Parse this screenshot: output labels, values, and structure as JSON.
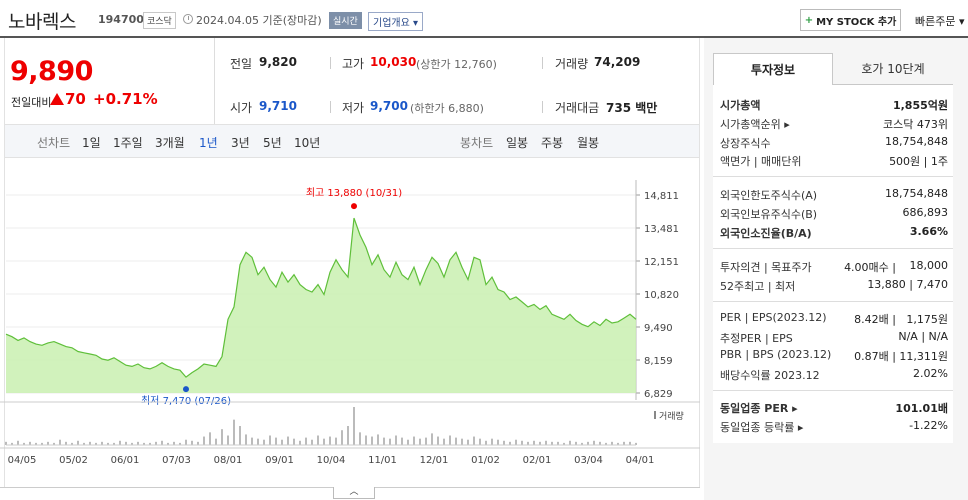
{
  "header": {
    "name": "노바렉스",
    "code": "194700",
    "market": "코스닥",
    "asof": "2024.04.05  기준(장마감)",
    "realtime": "실시간",
    "company_info": "기업개요 ▾",
    "mystock": "MY STOCK 추가",
    "quick_order": "빠른주문 ▾"
  },
  "price": {
    "current": "9,890",
    "change_label": "전일대비",
    "change_amount": "70",
    "change_pct": "+0.71%"
  },
  "stats": {
    "prev_label": "전일",
    "prev": "9,820",
    "high_label": "고가",
    "high": "10,030",
    "upper_limit": "(상한가 12,760)",
    "volume_label": "거래량",
    "volume": "74,209",
    "open_label": "시가",
    "open": "9,710",
    "low_label": "저가",
    "low": "9,700",
    "lower_limit": "(하한가 6,880)",
    "amount_label": "거래대금",
    "amount": "735 백만"
  },
  "period": {
    "line_label": "선차트",
    "line_items": [
      "1일",
      "1주일",
      "3개월",
      "1년",
      "3년",
      "5년",
      "10년"
    ],
    "active": "1년",
    "candle_label": "봉차트",
    "candle_items": [
      "일봉",
      "주봉",
      "월봉"
    ]
  },
  "chart_data": {
    "type": "area",
    "y_ticks": [
      "14,811",
      "13,481",
      "12,151",
      "10,820",
      "9,490",
      "8,159",
      "6,829"
    ],
    "ylim": [
      6829,
      14811
    ],
    "x_ticks": [
      "04/05",
      "05/02",
      "06/01",
      "07/03",
      "08/01",
      "09/01",
      "10/04",
      "11/01",
      "12/01",
      "01/02",
      "02/01",
      "03/04",
      "04/01"
    ],
    "high_annotation": "최고 13,880 (10/31)",
    "low_annotation": "최저 7,470 (07/26)",
    "volume_label": "거래량",
    "price": [
      9200,
      9100,
      8950,
      9050,
      8900,
      8800,
      8750,
      8850,
      8900,
      8800,
      8700,
      8650,
      8500,
      8450,
      8400,
      8350,
      8200,
      8150,
      8250,
      8100,
      7950,
      7900,
      8000,
      7850,
      7800,
      7900,
      8050,
      7900,
      7800,
      7750,
      7470,
      7650,
      7800,
      8000,
      7950,
      7900,
      8300,
      9800,
      10300,
      12000,
      12500,
      12300,
      11600,
      11900,
      11400,
      11100,
      11700,
      11300,
      11600,
      11200,
      11000,
      10900,
      11200,
      10800,
      11700,
      12200,
      11800,
      11500,
      13880,
      13200,
      12700,
      12000,
      12400,
      11800,
      11500,
      12100,
      11600,
      11400,
      11900,
      11200,
      11800,
      12300,
      12050,
      11500,
      12200,
      12500,
      11900,
      11400,
      12300,
      12200,
      11200,
      11500,
      11000,
      10900,
      10600,
      10700,
      10500,
      10300,
      10400,
      10200,
      10350,
      10000,
      9900,
      9800,
      10000,
      9750,
      9600,
      9500,
      9700,
      9550,
      9800,
      9650,
      9700,
      9850,
      10000,
      9800
    ],
    "volume": [
      3,
      2,
      4,
      2,
      3,
      2,
      2,
      3,
      2,
      5,
      3,
      2,
      4,
      2,
      3,
      2,
      3,
      2,
      2,
      4,
      3,
      2,
      3,
      2,
      2,
      3,
      4,
      2,
      3,
      2,
      5,
      4,
      3,
      8,
      12,
      6,
      15,
      9,
      24,
      18,
      10,
      7,
      6,
      5,
      9,
      7,
      5,
      8,
      6,
      4,
      7,
      5,
      9,
      6,
      8,
      7,
      14,
      18,
      36,
      12,
      9,
      8,
      10,
      7,
      6,
      9,
      7,
      5,
      8,
      6,
      7,
      11,
      8,
      6,
      9,
      7,
      6,
      5,
      8,
      6,
      4,
      6,
      5,
      4,
      3,
      5,
      4,
      3,
      4,
      3,
      4,
      3,
      3,
      2,
      4,
      3,
      2,
      3,
      4,
      3,
      2,
      3,
      2,
      3,
      3,
      2
    ]
  },
  "side": {
    "tab_invest": "투자정보",
    "tab_hoga": "호가 10단계",
    "rows": [
      {
        "k": "시가총액",
        "v": "1,855억원"
      },
      {
        "k": "시가총액순위 ▸",
        "v": "코스닥 473위"
      },
      {
        "k": "상장주식수",
        "v": "18,754,848"
      },
      {
        "k": "액면가 | 매매단위",
        "v": "500원 | 1주"
      },
      {
        "k": "외국인한도주식수(A)",
        "v": "18,754,848"
      },
      {
        "k": "외국인보유주식수(B)",
        "v": "686,893"
      },
      {
        "k": "외국인소진율(B/A)",
        "v": "3.66%"
      },
      {
        "k": "투자의견 | 목표주가",
        "v": "18,000",
        "v2": "4.00매수 |"
      },
      {
        "k": "52주최고 | 최저",
        "v": "13,880 | 7,470"
      },
      {
        "k": "PER | EPS(2023.12)",
        "v": "1,175원",
        "v2": "8.42배 |"
      },
      {
        "k": "추정PER | EPS",
        "v": "N/A | N/A"
      },
      {
        "k": "PBR | BPS (2023.12)",
        "v": "11,311원",
        "v2": "0.87배 |"
      },
      {
        "k": "배당수익률 2023.12",
        "v": "2.02%"
      },
      {
        "k": "동일업종 PER ▸",
        "v": "101.01배"
      },
      {
        "k": "동일업종 등락률 ▸",
        "v": "-1.22%"
      }
    ]
  },
  "colors": {
    "up": "#e00000",
    "down": "#1a57c9",
    "line": "#5fbf3a",
    "fill": "#c9f0b0"
  }
}
